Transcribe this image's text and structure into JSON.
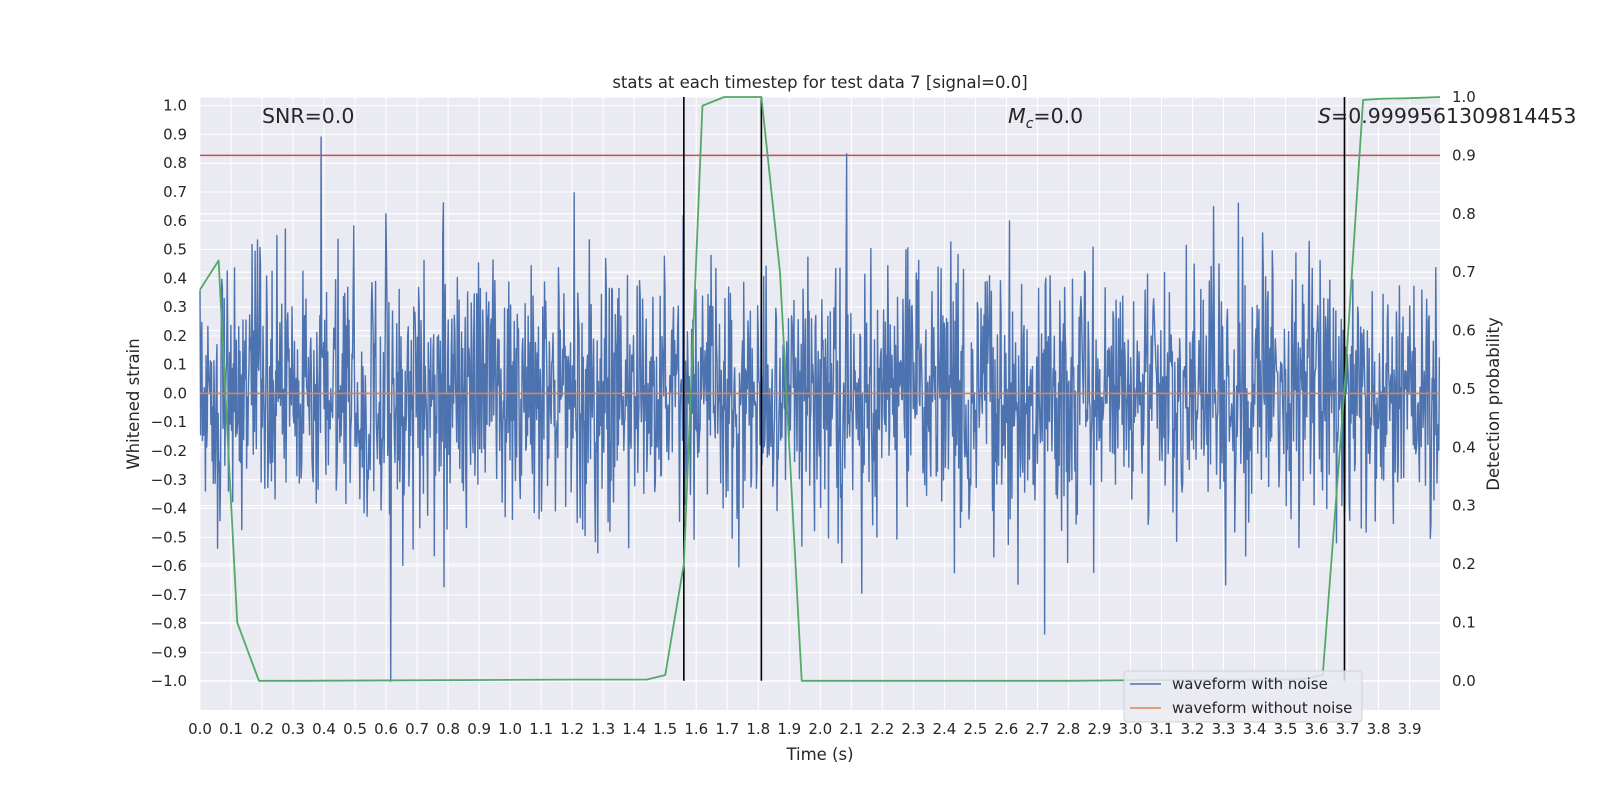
{
  "chart_data": {
    "type": "line",
    "title": "stats at each timestep for test data 7 [signal=0.0]",
    "xlabel": "Time (s)",
    "ylabel": "Whitened strain",
    "ylabel_right": "Detection probability",
    "xlim": [
      0.0,
      3.998
    ],
    "ylim": [
      -1.1,
      1.03
    ],
    "ylim_right": [
      -0.05,
      1.0
    ],
    "x_ticks": [
      "0.0",
      "0.1",
      "0.2",
      "0.3",
      "0.4",
      "0.5",
      "0.6",
      "0.7",
      "0.8",
      "0.9",
      "1.0",
      "1.1",
      "1.2",
      "1.3",
      "1.4",
      "1.5",
      "1.6",
      "1.7",
      "1.8",
      "1.9",
      "2.0",
      "2.1",
      "2.2",
      "2.3",
      "2.4",
      "2.5",
      "2.6",
      "2.7",
      "2.8",
      "2.9",
      "3.0",
      "3.1",
      "3.2",
      "3.3",
      "3.4",
      "3.5",
      "3.6",
      "3.7",
      "3.8",
      "3.9"
    ],
    "y_ticks": [
      "1.0",
      "0.9",
      "0.8",
      "0.7",
      "0.6",
      "0.5",
      "0.4",
      "0.3",
      "0.2",
      "0.1",
      "0.0",
      "-0.1",
      "-0.2",
      "-0.3",
      "-0.4",
      "-0.5",
      "-0.6",
      "-0.7",
      "-0.8",
      "-0.9",
      "-1.0"
    ],
    "y_ticks_right": [
      "1.0",
      "0.9",
      "0.8",
      "0.7",
      "0.6",
      "0.5",
      "0.4",
      "0.3",
      "0.2",
      "0.1",
      "0.0"
    ],
    "grid": true,
    "legend_position": "lower-right",
    "colors": {
      "noise": "#4c72b0",
      "clean": "#dd8452",
      "prob": "#55a868",
      "threshold": "#c44e52",
      "marker": "#000000",
      "background": "#eaeaf2",
      "grid": "#ffffff"
    },
    "series": [
      {
        "name": "waveform with noise",
        "note": "whitened noise sample, amplitude mostly within ±0.5, spikes near ±0.9"
      },
      {
        "name": "waveform without noise",
        "y_constant": 0.0
      }
    ],
    "detection_probability": {
      "x": [
        0.0,
        0.06,
        0.12,
        0.19,
        0.25,
        0.31,
        1.2,
        1.44,
        1.5,
        1.56,
        1.62,
        1.69,
        1.81,
        1.87,
        1.94,
        2.0,
        2.5,
        2.8,
        3.0,
        3.5,
        3.56,
        3.62,
        3.69,
        3.75,
        3.81,
        3.9,
        3.998
      ],
      "y": [
        0.67,
        0.72,
        0.1,
        0.0,
        0.0,
        0.0,
        0.002,
        0.002,
        0.01,
        0.2,
        0.985,
        1.0,
        1.0,
        0.7,
        0.0,
        0.0,
        0.0,
        0.0,
        0.001,
        0.002,
        0.003,
        0.01,
        0.5,
        0.995,
        0.997,
        0.998,
        1.0
      ]
    },
    "threshold_right": 0.9,
    "vertical_markers": [
      1.56,
      1.81,
      3.69
    ],
    "annotations": {
      "snr": "SNR=0.0",
      "mc_symbol": "M",
      "mc_sub": "c",
      "mc_value": "=0.0",
      "s_symbol": "S",
      "s_value": "=0.9999561309814453"
    }
  }
}
